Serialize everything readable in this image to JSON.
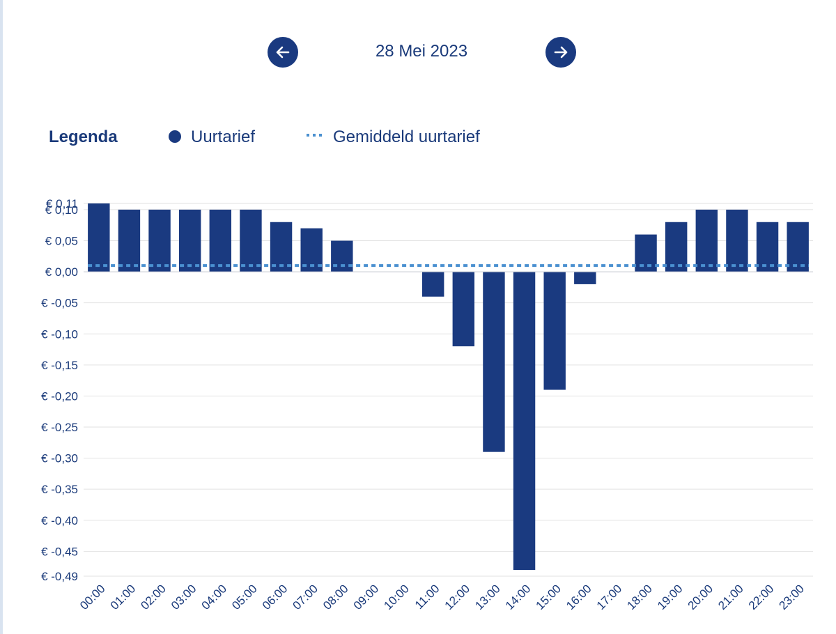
{
  "header": {
    "date": "28 Mei 2023",
    "prev_icon": "arrow-left-icon",
    "next_icon": "arrow-right-icon"
  },
  "legend": {
    "title": "Legenda",
    "items": [
      {
        "label": "Uurtarief",
        "symbol": "dot",
        "color": "#1a3a80"
      },
      {
        "label": "Gemiddeld uurtarief",
        "symbol": "dotted-line",
        "color": "#4a90d0"
      }
    ]
  },
  "chart_data": {
    "type": "bar",
    "categories": [
      "00:00",
      "01:00",
      "02:00",
      "03:00",
      "04:00",
      "05:00",
      "06:00",
      "07:00",
      "08:00",
      "09:00",
      "10:00",
      "11:00",
      "12:00",
      "13:00",
      "14:00",
      "15:00",
      "16:00",
      "17:00",
      "18:00",
      "19:00",
      "20:00",
      "21:00",
      "22:00",
      "23:00"
    ],
    "series": [
      {
        "values": [
          0.11,
          0.1,
          0.1,
          0.1,
          0.1,
          0.1,
          0.08,
          0.07,
          0.05,
          0,
          0,
          -0.04,
          -0.12,
          -0.29,
          -0.48,
          -0.19,
          -0.02,
          0,
          0.06,
          0.08,
          0.1,
          0.1,
          0.08,
          0.08
        ],
        "color": "#1a3a80"
      }
    ],
    "average": 0.01,
    "average_color": "#4a90d0",
    "ylim": [
      -0.49,
      0.11
    ],
    "yticks": [
      0.11,
      0.1,
      0.05,
      0.0,
      -0.05,
      -0.1,
      -0.15,
      -0.2,
      -0.25,
      -0.3,
      -0.35,
      -0.4,
      -0.45,
      -0.49
    ],
    "ytick_labels": [
      "€ 0,11",
      "€ 0,10",
      "€ 0,05",
      "€ 0,00",
      "€ -0,05",
      "€ -0,10",
      "€ -0,15",
      "€ -0,20",
      "€ -0,25",
      "€ -0,30",
      "€ -0,35",
      "€ -0,40",
      "€ -0,45",
      "€ -0,49"
    ],
    "grid": true
  }
}
